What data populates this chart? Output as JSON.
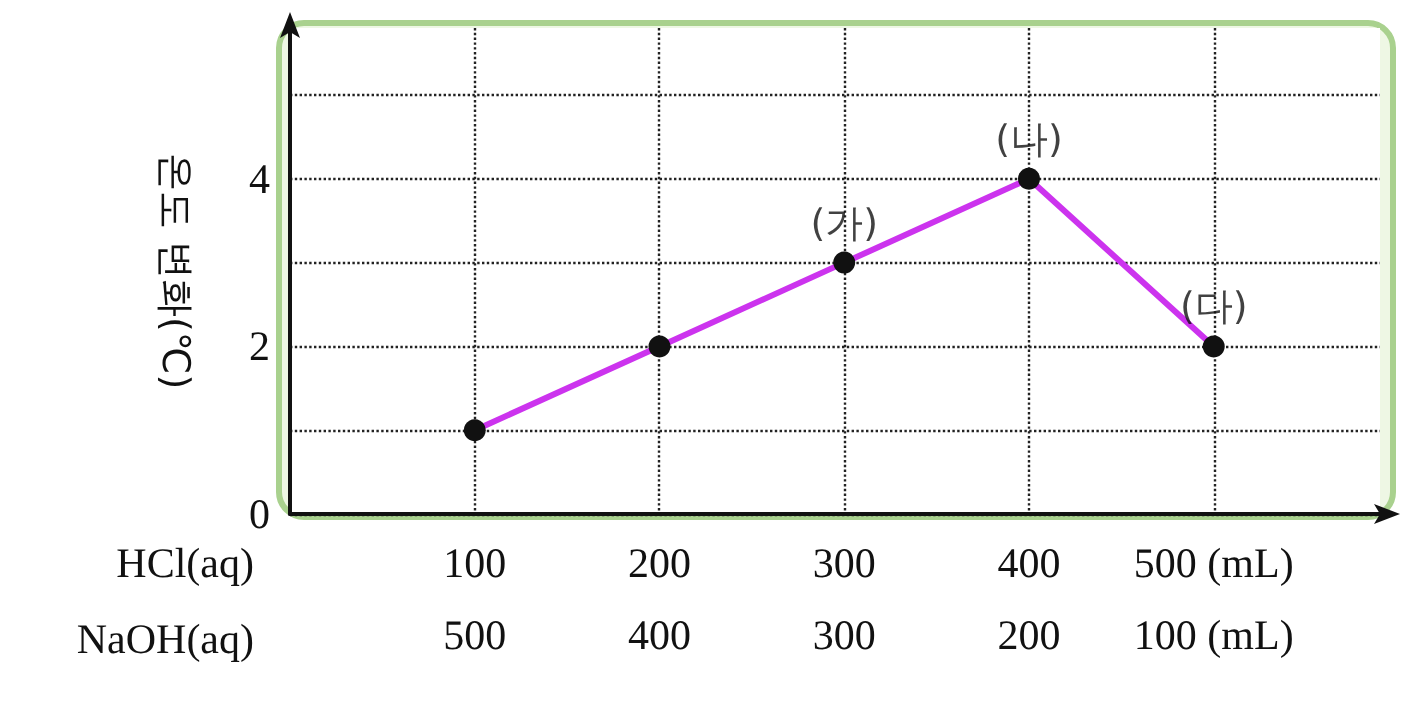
{
  "chart_data": {
    "type": "line",
    "x": [
      100,
      200,
      300,
      400,
      500
    ],
    "values": [
      1,
      2,
      3,
      4,
      2
    ],
    "color": "#cc33ee",
    "xlabel": "HCl(aq)",
    "x2label": "NaOH(aq)",
    "ylabel": "온도 변화(℃)",
    "xlim": [
      0,
      590
    ],
    "xticks": [
      100,
      200,
      300,
      400,
      {
        "value": 500,
        "label": "500 (mL)"
      }
    ],
    "x2lim": [
      600,
      10
    ],
    "x2ticks": [
      500,
      400,
      300,
      200,
      {
        "value": 100,
        "label": "100 (mL)"
      }
    ],
    "ylim": [
      0,
      5.8
    ],
    "yticks": [
      0,
      {
        "value": 1,
        "label": null
      },
      2,
      {
        "value": 3,
        "label": null
      },
      4,
      {
        "value": 5,
        "label": null
      }
    ],
    "grid": true,
    "marker": "circle",
    "line_style": "solid",
    "annotations": [
      {
        "text": "(가)",
        "x": 300,
        "y": 3
      },
      {
        "text": "(나)",
        "x": 400,
        "y": 4
      },
      {
        "text": "(다)",
        "x": 500,
        "y": 2
      }
    ]
  }
}
